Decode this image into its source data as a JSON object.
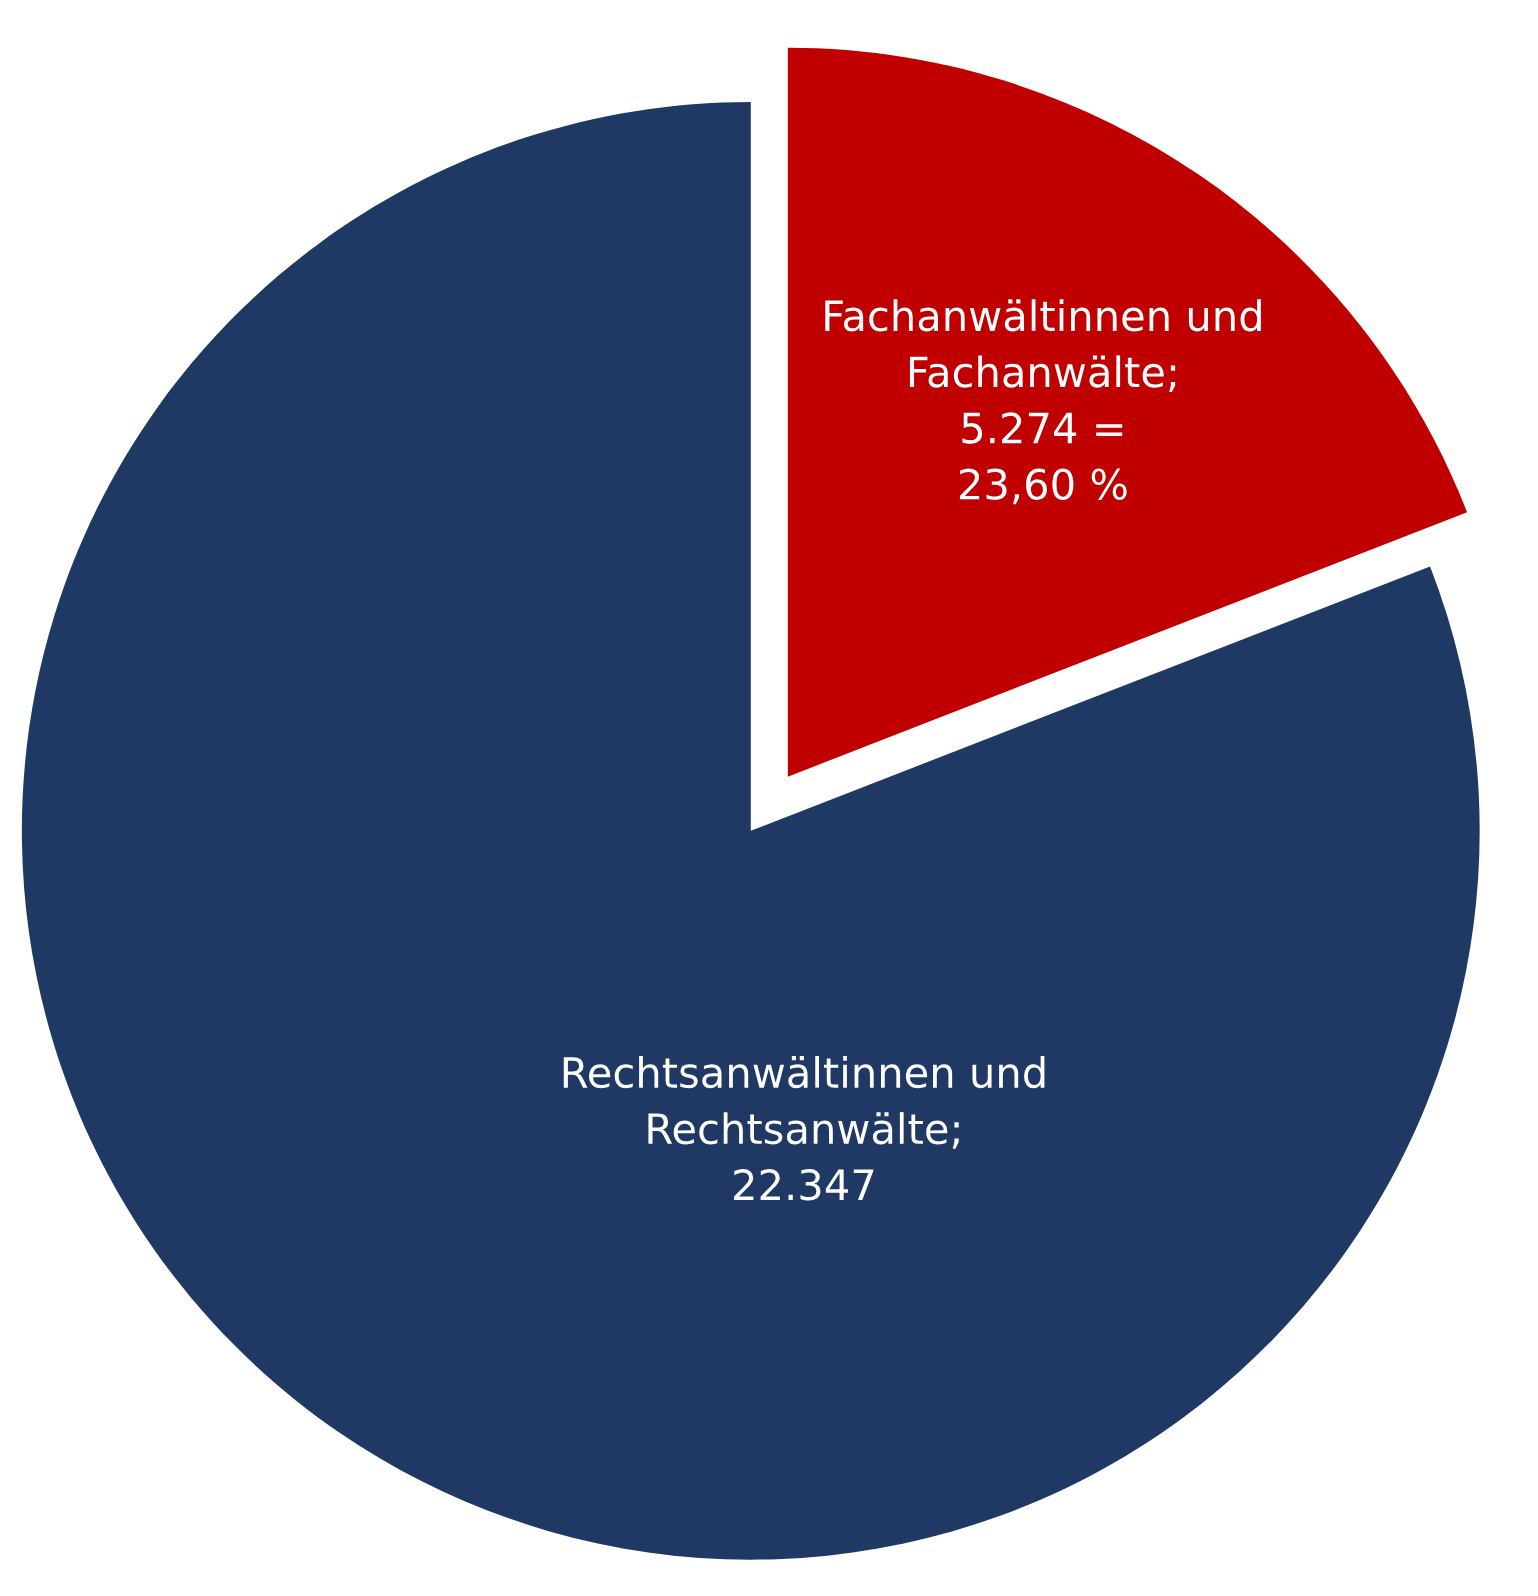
{
  "chart_data": {
    "type": "pie",
    "categories": [
      "Fachanwältinnen und Fachanwälte",
      "Rechtsanwältinnen und Rechtsanwälte"
    ],
    "values": [
      5274,
      22347
    ],
    "value_labels": [
      ";\n5.274 =\n23,60 %",
      ";\n22.347"
    ],
    "colors": [
      "#c00000",
      "#1f3864"
    ]
  }
}
